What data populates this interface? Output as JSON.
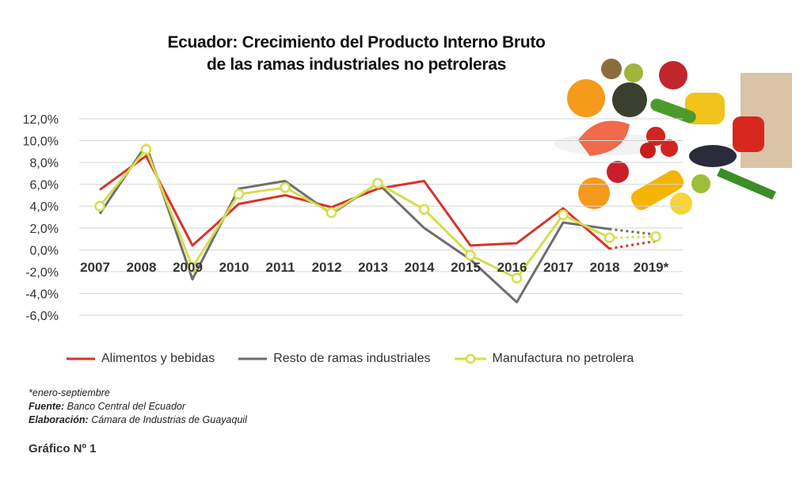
{
  "title": {
    "line1": "Ecuador: Crecimiento del Producto Interno Bruto",
    "line2": "de las ramas industriales no petroleras"
  },
  "chart_data": {
    "type": "line",
    "categories": [
      "2007",
      "2008",
      "2009",
      "2010",
      "2011",
      "2012",
      "2013",
      "2014",
      "2015",
      "2016",
      "2017",
      "2018",
      "2019*"
    ],
    "y_ticks": [
      "12,0%",
      "10,0%",
      "8,0%",
      "6,0%",
      "4,0%",
      "2,0%",
      "0,0%",
      "-2,0%",
      "-4,0%",
      "-6,0%"
    ],
    "ylim": [
      -6,
      12
    ],
    "grid": true,
    "legend_position": "bottom",
    "series": [
      {
        "name": "Alimentos y bebidas",
        "color": "#d8322c",
        "values": [
          5.5,
          8.6,
          0.4,
          4.2,
          5.0,
          3.9,
          5.6,
          6.3,
          0.4,
          0.6,
          3.8,
          0.1,
          0.8
        ],
        "marker": false
      },
      {
        "name": "Resto de ramas industriales",
        "color": "#6e6e6e",
        "values": [
          3.3,
          9.6,
          -2.7,
          5.6,
          6.3,
          3.3,
          6.1,
          2.0,
          -0.9,
          -4.8,
          2.5,
          1.9,
          1.4
        ],
        "marker": false
      },
      {
        "name": "Manufactura no petrolera",
        "color": "#d4de4a",
        "values": [
          4.0,
          9.2,
          -1.6,
          5.1,
          5.7,
          3.4,
          6.1,
          3.7,
          -0.5,
          -2.6,
          3.2,
          1.1,
          1.2
        ],
        "marker": true
      }
    ],
    "note": "2018 → 2019* segment shown dotted"
  },
  "notes": {
    "line1": "*enero-septiembre",
    "fuente_label": "Fuente:",
    "fuente_value": " Banco Central del Ecuador",
    "elab_label": "Elaboración:",
    "elab_value": " Cámara de Industrias de Guayaquil"
  },
  "figure_label": "Gráfico Nº 1"
}
